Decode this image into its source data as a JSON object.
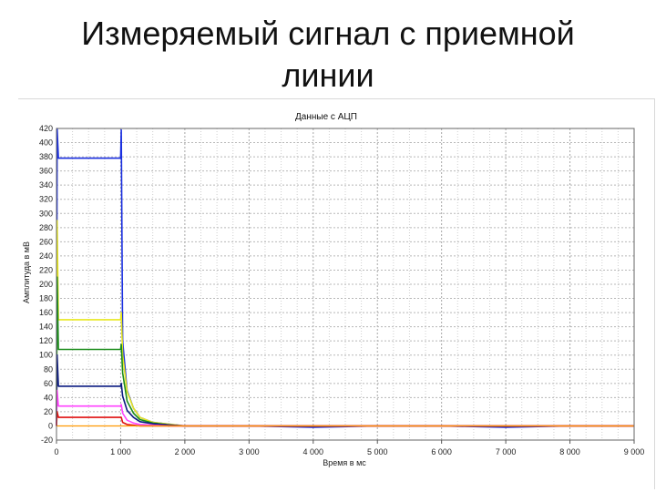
{
  "slide": {
    "title_line1": "Измеряемый сигнал с приемной",
    "title_line2": "линии"
  },
  "chart_data": {
    "type": "line",
    "title": "Данные с АЦП",
    "xlabel": "Время в мс",
    "ylabel": "Амплитуда в мВ",
    "xlim": [
      0,
      9000
    ],
    "ylim": [
      -20,
      420
    ],
    "x_ticks": [
      0,
      1000,
      2000,
      3000,
      4000,
      5000,
      6000,
      7000,
      8000,
      9000
    ],
    "x_tick_labels": [
      "0",
      "1 000",
      "2 000",
      "3 000",
      "4 000",
      "5 000",
      "6 000",
      "7 000",
      "8 000",
      "9 000"
    ],
    "y_ticks": [
      -20,
      0,
      20,
      40,
      60,
      80,
      100,
      120,
      140,
      160,
      180,
      200,
      220,
      240,
      260,
      280,
      300,
      320,
      340,
      360,
      380,
      400,
      420
    ],
    "grid": true,
    "series": [
      {
        "color": "#1a2fe0",
        "x": [
          0,
          10,
          30,
          1000,
          1010,
          1030,
          1100,
          1200,
          1300,
          1500,
          1800,
          2000,
          3000,
          4000,
          5000,
          6000,
          7000,
          8000,
          9000
        ],
        "y": [
          0,
          420,
          378,
          378,
          418,
          120,
          50,
          25,
          12,
          5,
          2,
          0,
          0,
          -2,
          0,
          0,
          -2,
          0,
          0
        ]
      },
      {
        "color": "#e8e820",
        "x": [
          0,
          10,
          30,
          1000,
          1010,
          1030,
          1100,
          1200,
          1300,
          1500,
          1800,
          2000,
          3000,
          4000,
          5000,
          6000,
          7000,
          8000,
          9000
        ],
        "y": [
          0,
          290,
          150,
          150,
          160,
          100,
          48,
          25,
          12,
          5,
          2,
          0,
          0,
          0,
          0,
          0,
          0,
          0,
          0
        ]
      },
      {
        "color": "#1a8c1a",
        "x": [
          0,
          10,
          30,
          1000,
          1010,
          1030,
          1100,
          1200,
          1300,
          1500,
          1800,
          2000,
          3000,
          4000,
          5000,
          6000,
          7000,
          8000,
          9000
        ],
        "y": [
          0,
          210,
          108,
          108,
          115,
          75,
          35,
          18,
          9,
          4,
          1,
          0,
          0,
          0,
          0,
          0,
          0,
          0,
          0
        ]
      },
      {
        "color": "#0a1a80",
        "x": [
          0,
          10,
          30,
          1000,
          1010,
          1030,
          1100,
          1200,
          1300,
          1500,
          1800,
          2000,
          3000,
          4000,
          5000,
          6000,
          7000,
          8000,
          9000
        ],
        "y": [
          0,
          100,
          56,
          56,
          60,
          42,
          22,
          12,
          6,
          3,
          1,
          0,
          0,
          -1,
          0,
          0,
          -1,
          0,
          0
        ]
      },
      {
        "color": "#ff40ff",
        "x": [
          0,
          10,
          30,
          1000,
          1010,
          1030,
          1100,
          1200,
          1300,
          1500,
          1800,
          2000,
          3000,
          4000,
          5000,
          6000,
          7000,
          8000,
          9000
        ],
        "y": [
          0,
          50,
          28,
          28,
          30,
          18,
          8,
          4,
          2,
          1,
          0,
          0,
          0,
          0,
          0,
          0,
          0,
          0,
          0
        ]
      },
      {
        "color": "#e01010",
        "x": [
          0,
          10,
          30,
          1000,
          1010,
          1030,
          1100,
          1200,
          1300,
          1500,
          1800,
          2000,
          3000,
          4000,
          5000,
          6000,
          7000,
          8000,
          9000
        ],
        "y": [
          0,
          20,
          12,
          12,
          12,
          5,
          2,
          1,
          0,
          0,
          0,
          0,
          0,
          0,
          0,
          0,
          0,
          0,
          0
        ]
      },
      {
        "color": "#ff9900",
        "x": [
          0,
          1000,
          1300,
          2000,
          9000
        ],
        "y": [
          0,
          0,
          0,
          0,
          0
        ]
      }
    ]
  }
}
